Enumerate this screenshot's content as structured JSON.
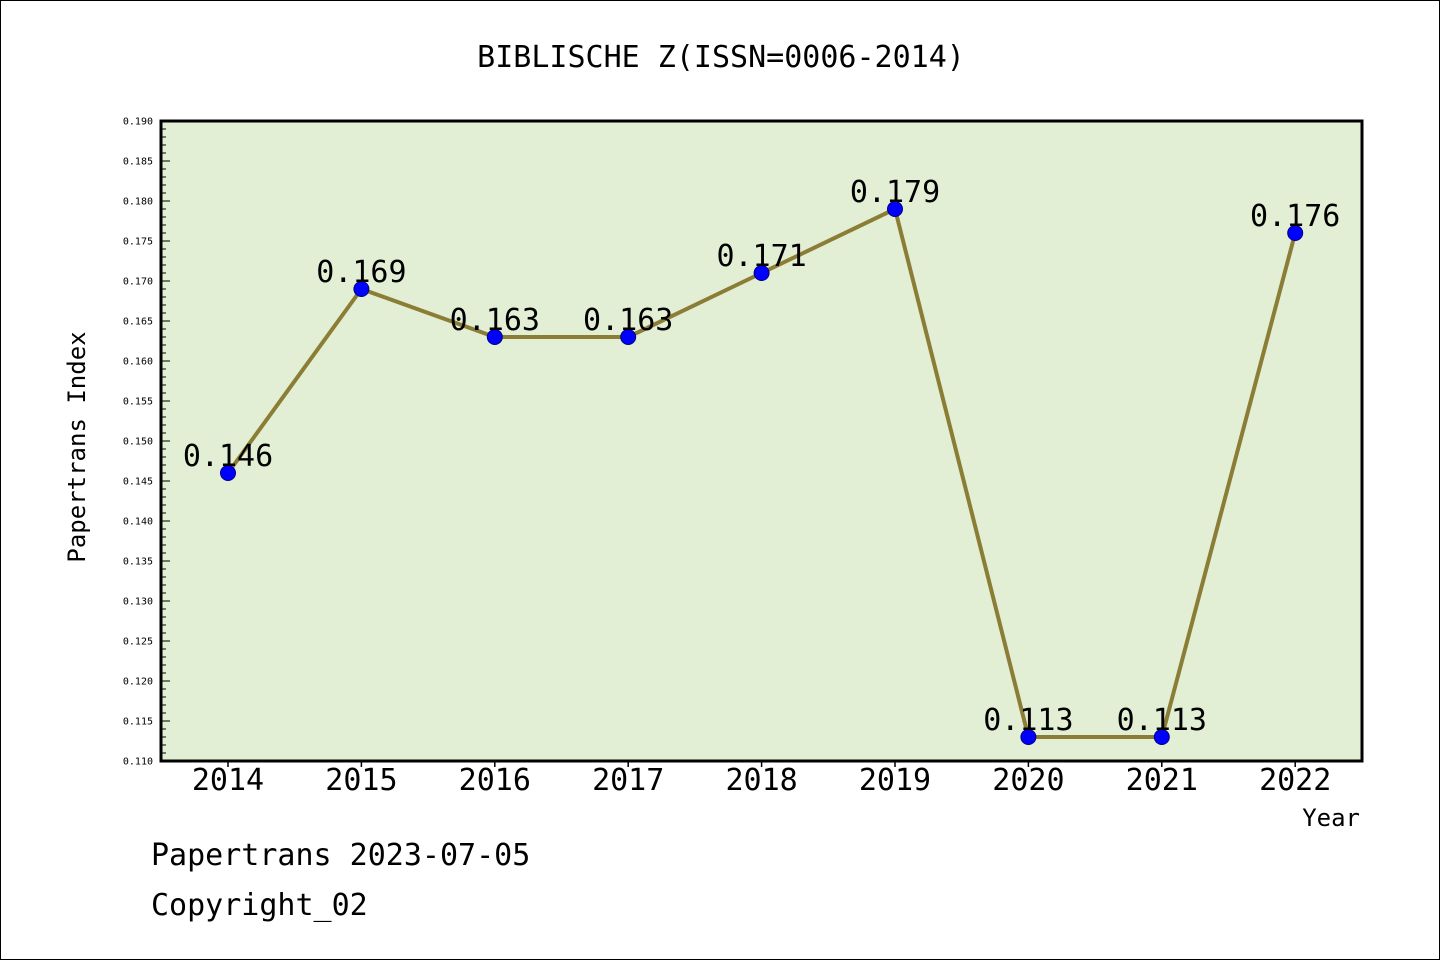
{
  "chart_data": {
    "type": "line",
    "title": "BIBLISCHE Z(ISSN=0006-2014)",
    "xlabel": "Year",
    "ylabel": "Papertrans Index",
    "categories": [
      "2014",
      "2015",
      "2016",
      "2017",
      "2018",
      "2019",
      "2020",
      "2021",
      "2022"
    ],
    "series": [
      {
        "values": [
          0.146,
          0.169,
          0.163,
          0.163,
          0.171,
          0.179,
          0.113,
          0.113,
          0.176
        ],
        "labels": [
          "0.146",
          "0.169",
          "0.163",
          "0.163",
          "0.171",
          "0.179",
          "0.113",
          "0.113",
          "0.176"
        ]
      }
    ],
    "ylim": [
      0.11,
      0.19
    ],
    "ytick_labels": [
      "0.110",
      "0.115",
      "0.120",
      "0.125",
      "0.130",
      "0.135",
      "0.140",
      "0.145",
      "0.150",
      "0.155",
      "0.160",
      "0.165",
      "0.170",
      "0.175",
      "0.180",
      "0.185",
      "0.190"
    ],
    "grid": false,
    "legend": "none"
  },
  "footer": {
    "line1": "Papertrans 2023-07-05",
    "line2": "Copyright_02"
  },
  "colors": {
    "plot_background": "#e2efd5",
    "line": "#8b7d35",
    "marker": "#0000ff",
    "marker_edge": "#00007f",
    "axes": "#000000"
  }
}
